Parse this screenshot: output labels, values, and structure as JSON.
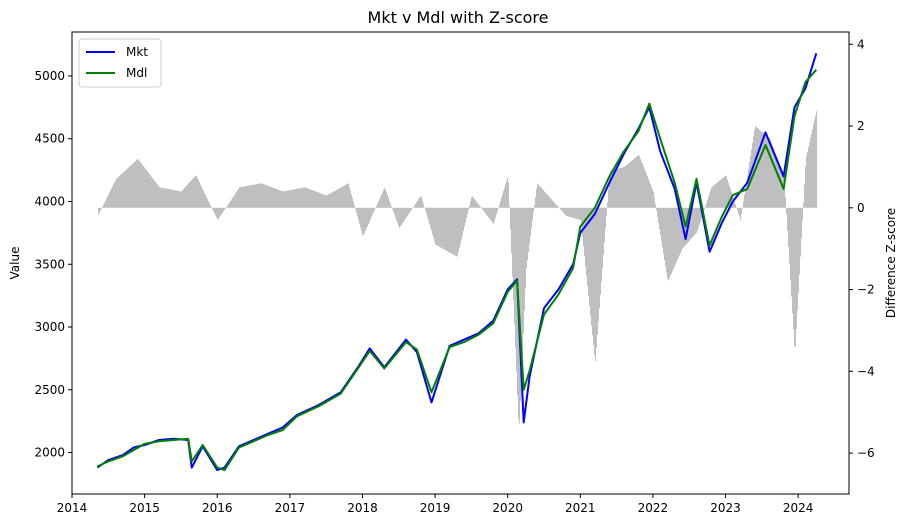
{
  "chart_data": {
    "type": "line",
    "title": "Mkt v Mdl with Z-score",
    "ylabel_left": "Value",
    "ylabel_right": "Difference Z-score",
    "xlim": [
      2014.0,
      2024.7
    ],
    "ylim_left": [
      1670,
      5350
    ],
    "ylim_right": [
      -7.0,
      4.3
    ],
    "x_ticks": [
      "2014",
      "2015",
      "2016",
      "2017",
      "2018",
      "2019",
      "2020",
      "2021",
      "2022",
      "2023",
      "2024"
    ],
    "y_ticks_left": [
      2000,
      2500,
      3000,
      3500,
      4000,
      4500,
      5000
    ],
    "y_ticks_right": [
      -6,
      -4,
      -2,
      0,
      2,
      4
    ],
    "legend": {
      "placement": "upper-left",
      "entries": [
        "Mkt",
        "Mdl"
      ]
    },
    "colors": {
      "Mkt": "#0000ff",
      "Mdl": "#008000",
      "zscore_bars": "#bfbfbf"
    },
    "series": [
      {
        "name": "Mkt",
        "x": [
          2014.35,
          2014.5,
          2014.7,
          2014.85,
          2015.0,
          2015.2,
          2015.4,
          2015.6,
          2015.65,
          2015.8,
          2016.0,
          2016.1,
          2016.3,
          2016.5,
          2016.7,
          2016.9,
          2017.1,
          2017.4,
          2017.7,
          2017.95,
          2018.1,
          2018.3,
          2018.6,
          2018.75,
          2018.95,
          2019.2,
          2019.4,
          2019.6,
          2019.8,
          2020.0,
          2020.13,
          2020.22,
          2020.3,
          2020.5,
          2020.7,
          2020.9,
          2021.0,
          2021.2,
          2021.4,
          2021.6,
          2021.8,
          2021.95,
          2022.1,
          2022.3,
          2022.45,
          2022.6,
          2022.78,
          2022.95,
          2023.1,
          2023.3,
          2023.55,
          2023.8,
          2023.95,
          2024.1,
          2024.25
        ],
        "values": [
          1880,
          1940,
          1980,
          2040,
          2060,
          2100,
          2110,
          2100,
          1880,
          2050,
          1860,
          1880,
          2050,
          2100,
          2150,
          2200,
          2300,
          2380,
          2480,
          2690,
          2830,
          2680,
          2900,
          2800,
          2400,
          2850,
          2900,
          2950,
          3050,
          3300,
          3380,
          2240,
          2600,
          3150,
          3300,
          3500,
          3750,
          3900,
          4150,
          4380,
          4580,
          4750,
          4400,
          4100,
          3700,
          4150,
          3600,
          3830,
          4000,
          4150,
          4550,
          4200,
          4750,
          4900,
          5180
        ]
      },
      {
        "name": "Mdl",
        "x": [
          2014.35,
          2014.5,
          2014.7,
          2014.85,
          2015.0,
          2015.2,
          2015.4,
          2015.6,
          2015.65,
          2015.8,
          2016.0,
          2016.1,
          2016.3,
          2016.5,
          2016.7,
          2016.9,
          2017.1,
          2017.4,
          2017.7,
          2017.95,
          2018.1,
          2018.3,
          2018.6,
          2018.75,
          2018.95,
          2019.2,
          2019.4,
          2019.6,
          2019.8,
          2020.0,
          2020.13,
          2020.22,
          2020.3,
          2020.5,
          2020.7,
          2020.9,
          2021.0,
          2021.2,
          2021.4,
          2021.6,
          2021.8,
          2021.95,
          2022.1,
          2022.3,
          2022.45,
          2022.6,
          2022.78,
          2022.95,
          2023.1,
          2023.3,
          2023.55,
          2023.8,
          2023.95,
          2024.1,
          2024.25
        ],
        "values": [
          1890,
          1930,
          1970,
          2020,
          2070,
          2090,
          2100,
          2110,
          1930,
          2060,
          1880,
          1860,
          2040,
          2090,
          2140,
          2180,
          2290,
          2370,
          2470,
          2680,
          2810,
          2670,
          2880,
          2820,
          2480,
          2840,
          2880,
          2940,
          3030,
          3280,
          3370,
          2500,
          2650,
          3100,
          3260,
          3470,
          3800,
          3950,
          4200,
          4400,
          4560,
          4780,
          4500,
          4150,
          3800,
          4180,
          3650,
          3880,
          4050,
          4100,
          4450,
          4100,
          4680,
          4950,
          5050
        ]
      },
      {
        "name": "Difference Z-score",
        "x": [
          2014.35,
          2014.6,
          2014.9,
          2015.2,
          2015.5,
          2015.7,
          2016.0,
          2016.3,
          2016.6,
          2016.9,
          2017.2,
          2017.5,
          2017.8,
          2018.0,
          2018.3,
          2018.5,
          2018.8,
          2019.0,
          2019.3,
          2019.5,
          2019.8,
          2020.0,
          2020.15,
          2020.25,
          2020.4,
          2020.6,
          2020.8,
          2021.0,
          2021.2,
          2021.4,
          2021.6,
          2021.8,
          2022.0,
          2022.2,
          2022.4,
          2022.6,
          2022.8,
          2023.0,
          2023.2,
          2023.4,
          2023.6,
          2023.8,
          2023.95,
          2024.1,
          2024.25
        ],
        "values": [
          -0.2,
          0.7,
          1.2,
          0.5,
          0.4,
          0.8,
          -0.3,
          0.5,
          0.6,
          0.4,
          0.5,
          0.3,
          0.6,
          -0.7,
          0.5,
          -0.5,
          0.3,
          -0.9,
          -1.2,
          0.3,
          -0.4,
          0.8,
          -5.5,
          -1.5,
          0.6,
          0.2,
          -0.2,
          -0.3,
          -3.8,
          0.9,
          1.0,
          1.3,
          0.4,
          -1.8,
          -1.0,
          -0.6,
          0.5,
          0.8,
          -0.3,
          2.0,
          1.7,
          0.8,
          -3.6,
          1.2,
          2.4
        ]
      }
    ]
  }
}
